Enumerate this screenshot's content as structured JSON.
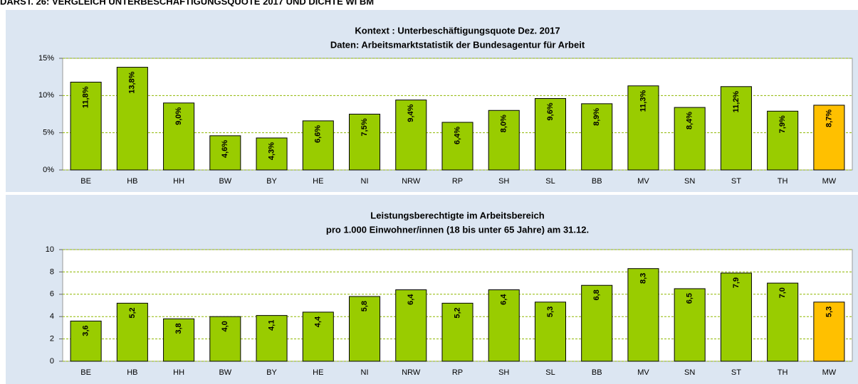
{
  "heading": "DARST. 26: VERGLEICH UNTERBESCHÄFTIGUNGSQUOTE 2017 UND DICHTE WI BM",
  "chart_data": [
    {
      "type": "bar",
      "title": "Kontext : Unterbeschäftigungsquote Dez. 2017",
      "subtitle": "Daten: Arbeitsmarktstatistik der Bundesagentur für Arbeit",
      "categories": [
        "BE",
        "HB",
        "HH",
        "BW",
        "BY",
        "HE",
        "NI",
        "NRW",
        "RP",
        "SH",
        "SL",
        "BB",
        "MV",
        "SN",
        "ST",
        "TH",
        "MW"
      ],
      "values": [
        11.8,
        13.8,
        9.0,
        4.6,
        4.3,
        6.6,
        7.5,
        9.4,
        6.4,
        8.0,
        9.6,
        8.9,
        11.3,
        8.4,
        11.2,
        7.9,
        8.7
      ],
      "value_labels": [
        "11,8%",
        "13,8%",
        "9,0%",
        "4,6%",
        "4,3%",
        "6,6%",
        "7,5%",
        "9,4%",
        "6,4%",
        "8,0%",
        "9,6%",
        "8,9%",
        "11,3%",
        "8,4%",
        "11,2%",
        "7,9%",
        "8,7%"
      ],
      "colors": [
        "#99cc00",
        "#99cc00",
        "#99cc00",
        "#99cc00",
        "#99cc00",
        "#99cc00",
        "#99cc00",
        "#99cc00",
        "#99cc00",
        "#99cc00",
        "#99cc00",
        "#99cc00",
        "#99cc00",
        "#99cc00",
        "#99cc00",
        "#99cc00",
        "#ffc000"
      ],
      "ylim": [
        0,
        15
      ],
      "yticks": [
        {
          "value": 0,
          "label": "0%"
        },
        {
          "value": 5,
          "label": "5%"
        },
        {
          "value": 10,
          "label": "10%"
        },
        {
          "value": 15,
          "label": "15%"
        }
      ],
      "grid": true
    },
    {
      "type": "bar",
      "title": "Leistungsberechtigte im Arbeitsbereich",
      "subtitle": "pro 1.000 Einwohner/innen (18 bis unter 65 Jahre) am 31.12.",
      "categories": [
        "BE",
        "HB",
        "HH",
        "BW",
        "BY",
        "HE",
        "NI",
        "NRW",
        "RP",
        "SH",
        "SL",
        "BB",
        "MV",
        "SN",
        "ST",
        "TH",
        "MW"
      ],
      "values": [
        3.6,
        5.2,
        3.8,
        4.0,
        4.1,
        4.4,
        5.8,
        6.4,
        5.2,
        6.4,
        5.3,
        6.8,
        8.3,
        6.5,
        7.9,
        7.0,
        5.3
      ],
      "value_labels": [
        "3,6",
        "5,2",
        "3,8",
        "4,0",
        "4,1",
        "4,4",
        "5,8",
        "6,4",
        "5,2",
        "6,4",
        "5,3",
        "6,8",
        "8,3",
        "6,5",
        "7,9",
        "7,0",
        "5,3"
      ],
      "colors": [
        "#99cc00",
        "#99cc00",
        "#99cc00",
        "#99cc00",
        "#99cc00",
        "#99cc00",
        "#99cc00",
        "#99cc00",
        "#99cc00",
        "#99cc00",
        "#99cc00",
        "#99cc00",
        "#99cc00",
        "#99cc00",
        "#99cc00",
        "#99cc00",
        "#ffc000"
      ],
      "ylim": [
        0,
        10
      ],
      "yticks": [
        0,
        2,
        4,
        6,
        8,
        10
      ],
      "grid": true
    }
  ]
}
